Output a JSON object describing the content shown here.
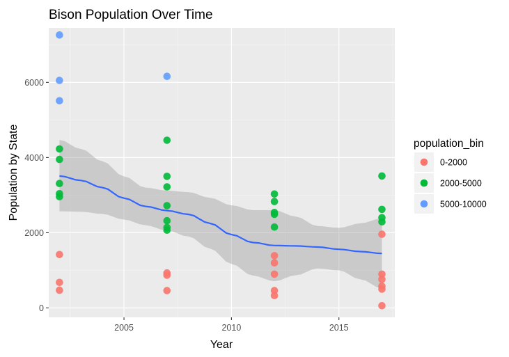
{
  "chart_data": {
    "type": "scatter",
    "title": "Bison Population Over Time",
    "xlabel": "Year",
    "ylabel": "Population by State",
    "xlim": [
      2001.5,
      2017.6
    ],
    "ylim": [
      -250,
      7450
    ],
    "xticks": [
      2005,
      2010,
      2015
    ],
    "yticks": [
      0,
      2000,
      4000,
      6000
    ],
    "grid": true,
    "legend": {
      "title": "population_bin",
      "position": "right",
      "entries": [
        {
          "label": "0-2000",
          "color": "#F8766D"
        },
        {
          "label": "2000-5000",
          "color": "#00BA38"
        },
        {
          "label": "5000-10000",
          "color": "#619CFF"
        }
      ]
    },
    "series": [
      {
        "name": "0-2000",
        "color": "#F8766D",
        "points": [
          {
            "x": 2002,
            "y": 1420
          },
          {
            "x": 2002,
            "y": 680
          },
          {
            "x": 2002,
            "y": 470
          },
          {
            "x": 2007,
            "y": 930
          },
          {
            "x": 2007,
            "y": 870
          },
          {
            "x": 2007,
            "y": 460
          },
          {
            "x": 2012,
            "y": 1390
          },
          {
            "x": 2012,
            "y": 1200
          },
          {
            "x": 2012,
            "y": 900
          },
          {
            "x": 2012,
            "y": 460
          },
          {
            "x": 2012,
            "y": 330
          },
          {
            "x": 2017,
            "y": 1960
          },
          {
            "x": 2017,
            "y": 900
          },
          {
            "x": 2017,
            "y": 760
          },
          {
            "x": 2017,
            "y": 580
          },
          {
            "x": 2017,
            "y": 500
          },
          {
            "x": 2017,
            "y": 60
          }
        ]
      },
      {
        "name": "2000-5000",
        "color": "#00BA38",
        "points": [
          {
            "x": 2002,
            "y": 4230
          },
          {
            "x": 2002,
            "y": 3950
          },
          {
            "x": 2002,
            "y": 3310
          },
          {
            "x": 2002,
            "y": 3040
          },
          {
            "x": 2002,
            "y": 2960
          },
          {
            "x": 2007,
            "y": 4460
          },
          {
            "x": 2007,
            "y": 3500
          },
          {
            "x": 2007,
            "y": 3220
          },
          {
            "x": 2007,
            "y": 2720
          },
          {
            "x": 2007,
            "y": 2320
          },
          {
            "x": 2007,
            "y": 2140
          },
          {
            "x": 2007,
            "y": 2070
          },
          {
            "x": 2012,
            "y": 3030
          },
          {
            "x": 2012,
            "y": 2830
          },
          {
            "x": 2012,
            "y": 2540
          },
          {
            "x": 2012,
            "y": 2490
          },
          {
            "x": 2012,
            "y": 2150
          },
          {
            "x": 2017,
            "y": 3510
          },
          {
            "x": 2017,
            "y": 2620
          },
          {
            "x": 2017,
            "y": 2400
          },
          {
            "x": 2017,
            "y": 2290
          }
        ]
      },
      {
        "name": "5000-10000",
        "color": "#619CFF",
        "points": [
          {
            "x": 2002,
            "y": 7260
          },
          {
            "x": 2002,
            "y": 6050
          },
          {
            "x": 2002,
            "y": 5510
          },
          {
            "x": 2007,
            "y": 6160
          }
        ]
      }
    ],
    "smooth": {
      "color": "#3366FF",
      "band_color": "#999999",
      "points": [
        {
          "x": 2002,
          "y": 3510,
          "lo": 2570,
          "hi": 4470
        },
        {
          "x": 2003,
          "y": 3390,
          "lo": 2560,
          "hi": 4230
        },
        {
          "x": 2004,
          "y": 3200,
          "lo": 2500,
          "hi": 3900
        },
        {
          "x": 2005,
          "y": 2920,
          "lo": 2350,
          "hi": 3500
        },
        {
          "x": 2006,
          "y": 2700,
          "lo": 2200,
          "hi": 3200
        },
        {
          "x": 2007,
          "y": 2590,
          "lo": 2060,
          "hi": 3120
        },
        {
          "x": 2008,
          "y": 2490,
          "lo": 1900,
          "hi": 3080
        },
        {
          "x": 2009,
          "y": 2250,
          "lo": 1580,
          "hi": 2930
        },
        {
          "x": 2010,
          "y": 1950,
          "lo": 1170,
          "hi": 2730
        },
        {
          "x": 2011,
          "y": 1740,
          "lo": 860,
          "hi": 2600
        },
        {
          "x": 2012,
          "y": 1660,
          "lo": 710,
          "hi": 2600
        },
        {
          "x": 2013,
          "y": 1650,
          "lo": 870,
          "hi": 2430
        },
        {
          "x": 2014,
          "y": 1620,
          "lo": 1050,
          "hi": 2180
        },
        {
          "x": 2015,
          "y": 1560,
          "lo": 1000,
          "hi": 2130
        },
        {
          "x": 2016,
          "y": 1500,
          "lo": 760,
          "hi": 2250
        },
        {
          "x": 2017,
          "y": 1450,
          "lo": 520,
          "hi": 2380
        }
      ]
    }
  }
}
